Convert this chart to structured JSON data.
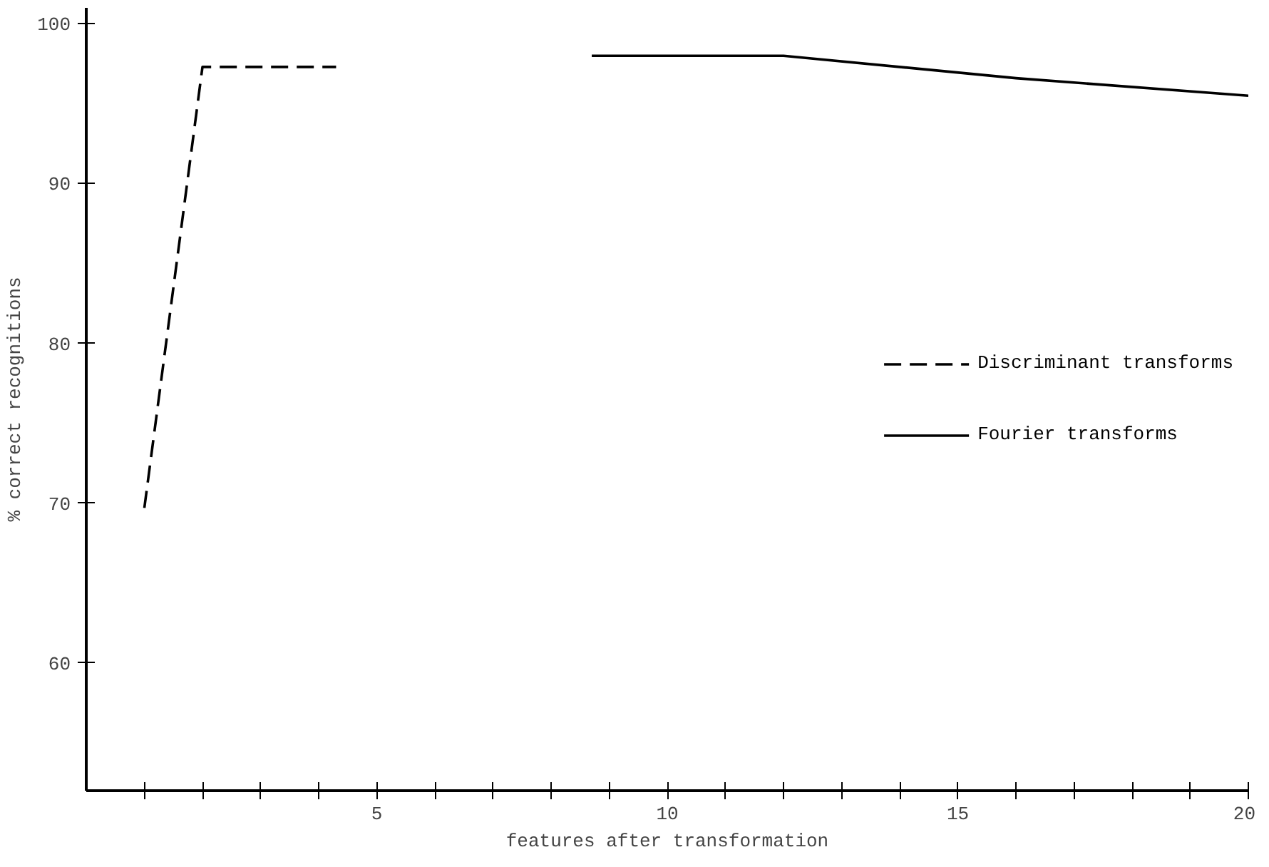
{
  "chart_data": {
    "type": "line",
    "xlabel": "features after transformation",
    "ylabel": "% correct recognitions",
    "xlim": [
      0,
      20
    ],
    "ylim": [
      52,
      101
    ],
    "xticks": [
      {
        "value": 1,
        "label": null
      },
      {
        "value": 2,
        "label": null
      },
      {
        "value": 3,
        "label": null
      },
      {
        "value": 4,
        "label": null
      },
      5,
      {
        "value": 6,
        "label": null
      },
      {
        "value": 7,
        "label": null
      },
      {
        "value": 8,
        "label": null
      },
      {
        "value": 9,
        "label": null
      },
      10,
      {
        "value": 11,
        "label": null
      },
      {
        "value": 12,
        "label": null
      },
      {
        "value": 13,
        "label": null
      },
      {
        "value": 14,
        "label": null
      },
      15,
      {
        "value": 16,
        "label": null
      },
      {
        "value": 17,
        "label": null
      },
      {
        "value": 18,
        "label": null
      },
      {
        "value": 19,
        "label": null
      },
      20
    ],
    "yticks": [
      60,
      70,
      80,
      90,
      100
    ],
    "grid": false,
    "legend": "right",
    "marker": "none",
    "series": [
      {
        "name": "Discriminant transforms",
        "color": "#000000",
        "line_style": "dashed",
        "x": [
          1,
          2,
          4.3
        ],
        "values": [
          69.7,
          97.3,
          97.3
        ]
      },
      {
        "name": "Fourier transforms",
        "color": "#000000",
        "line_style": "solid",
        "x": [
          8.7,
          12,
          16,
          20
        ],
        "values": [
          98,
          98,
          96.6,
          95.5
        ]
      }
    ]
  }
}
